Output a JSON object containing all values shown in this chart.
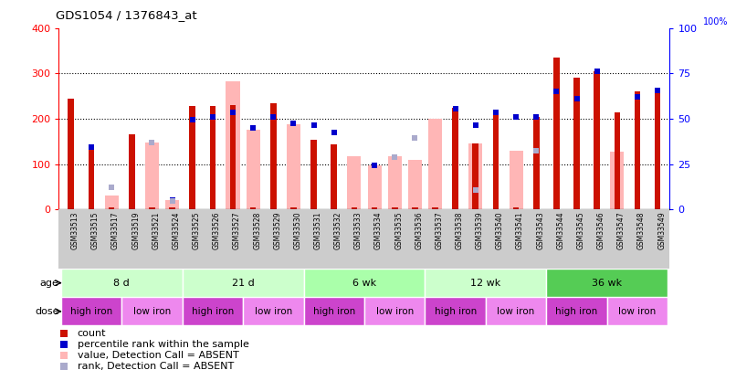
{
  "title": "GDS1054 / 1376843_at",
  "samples": [
    "GSM33513",
    "GSM33515",
    "GSM33517",
    "GSM33519",
    "GSM33521",
    "GSM33524",
    "GSM33525",
    "GSM33526",
    "GSM33527",
    "GSM33528",
    "GSM33529",
    "GSM33530",
    "GSM33531",
    "GSM33532",
    "GSM33533",
    "GSM33534",
    "GSM33535",
    "GSM33536",
    "GSM33537",
    "GSM33538",
    "GSM33539",
    "GSM33540",
    "GSM33541",
    "GSM33543",
    "GSM33544",
    "GSM33545",
    "GSM33546",
    "GSM33547",
    "GSM33548",
    "GSM33549"
  ],
  "count": [
    245,
    135,
    5,
    165,
    5,
    5,
    228,
    228,
    230,
    5,
    235,
    5,
    153,
    143,
    5,
    5,
    5,
    5,
    5,
    225,
    145,
    210,
    5,
    205,
    335,
    290,
    305,
    215,
    260,
    265
  ],
  "percentile_rank": [
    0,
    138,
    0,
    0,
    0,
    20,
    198,
    205,
    215,
    180,
    205,
    190,
    185,
    170,
    0,
    98,
    0,
    158,
    0,
    222,
    185,
    215,
    205,
    205,
    260,
    245,
    305,
    0,
    248,
    262
  ],
  "absent_value": [
    0,
    0,
    30,
    0,
    148,
    20,
    0,
    0,
    283,
    175,
    0,
    188,
    0,
    0,
    118,
    98,
    118,
    110,
    200,
    0,
    145,
    0,
    130,
    0,
    0,
    0,
    0,
    128,
    0,
    0
  ],
  "absent_rank": [
    0,
    0,
    48,
    0,
    148,
    18,
    0,
    0,
    0,
    0,
    0,
    0,
    0,
    0,
    0,
    0,
    115,
    158,
    0,
    0,
    42,
    0,
    0,
    130,
    0,
    0,
    0,
    0,
    0,
    0
  ],
  "age_groups": [
    {
      "label": "8 d",
      "start": 0,
      "end": 6,
      "color": "#ccffcc"
    },
    {
      "label": "21 d",
      "start": 6,
      "end": 12,
      "color": "#ccffcc"
    },
    {
      "label": "6 wk",
      "start": 12,
      "end": 18,
      "color": "#aaffaa"
    },
    {
      "label": "12 wk",
      "start": 18,
      "end": 24,
      "color": "#ccffcc"
    },
    {
      "label": "36 wk",
      "start": 24,
      "end": 30,
      "color": "#55cc55"
    }
  ],
  "dose_groups": [
    {
      "label": "high iron",
      "start": 0,
      "end": 3,
      "color": "#cc44cc"
    },
    {
      "label": "low iron",
      "start": 3,
      "end": 6,
      "color": "#ee88ee"
    },
    {
      "label": "high iron",
      "start": 6,
      "end": 9,
      "color": "#cc44cc"
    },
    {
      "label": "low iron",
      "start": 9,
      "end": 12,
      "color": "#ee88ee"
    },
    {
      "label": "high iron",
      "start": 12,
      "end": 15,
      "color": "#cc44cc"
    },
    {
      "label": "low iron",
      "start": 15,
      "end": 18,
      "color": "#ee88ee"
    },
    {
      "label": "high iron",
      "start": 18,
      "end": 21,
      "color": "#cc44cc"
    },
    {
      "label": "low iron",
      "start": 21,
      "end": 24,
      "color": "#ee88ee"
    },
    {
      "label": "high iron",
      "start": 24,
      "end": 27,
      "color": "#cc44cc"
    },
    {
      "label": "low iron",
      "start": 27,
      "end": 30,
      "color": "#ee88ee"
    }
  ],
  "ylim": [
    0,
    400
  ],
  "yticks_left": [
    0,
    100,
    200,
    300,
    400
  ],
  "yticks_right": [
    0,
    25,
    50,
    75,
    100
  ],
  "bar_color_red": "#cc1100",
  "bar_color_pink": "#ffb6b6",
  "square_color_blue": "#0000cc",
  "square_color_lblue": "#aaaacc",
  "tick_bg": "#cccccc",
  "legend_items": [
    {
      "color": "#cc1100",
      "label": "count"
    },
    {
      "color": "#0000cc",
      "label": "percentile rank within the sample"
    },
    {
      "color": "#ffb6b6",
      "label": "value, Detection Call = ABSENT"
    },
    {
      "color": "#aaaacc",
      "label": "rank, Detection Call = ABSENT"
    }
  ]
}
